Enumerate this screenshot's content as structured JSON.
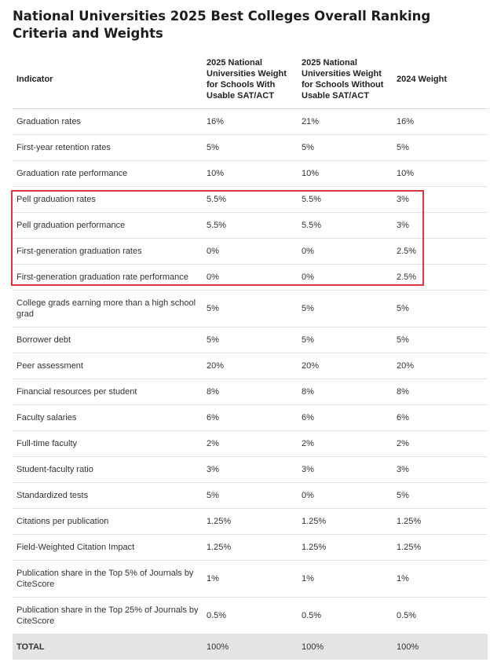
{
  "title": "National Universities 2025 Best Colleges Overall Ranking Criteria and Weights",
  "table": {
    "headers": [
      "Indicator",
      "2025 National Universities Weight for Schools With Usable SAT/ACT",
      "2025 National Universities Weight for Schools Without Usable SAT/ACT",
      "2024 Weight"
    ],
    "rows": [
      [
        "Graduation rates",
        "16%",
        "21%",
        "16%"
      ],
      [
        "First-year retention rates",
        "5%",
        "5%",
        "5%"
      ],
      [
        "Graduation rate performance",
        "10%",
        "10%",
        "10%"
      ],
      [
        "Pell graduation rates",
        "5.5%",
        "5.5%",
        "3%"
      ],
      [
        "Pell graduation performance",
        "5.5%",
        "5.5%",
        "3%"
      ],
      [
        "First-generation graduation rates",
        "0%",
        "0%",
        "2.5%"
      ],
      [
        "First-generation graduation rate performance",
        "0%",
        "0%",
        "2.5%"
      ],
      [
        "College grads earning more than a high school grad",
        "5%",
        "5%",
        "5%"
      ],
      [
        "Borrower debt",
        "5%",
        "5%",
        "5%"
      ],
      [
        "Peer assessment",
        "20%",
        "20%",
        "20%"
      ],
      [
        "Financial resources per student",
        "8%",
        "8%",
        "8%"
      ],
      [
        "Faculty salaries",
        "6%",
        "6%",
        "6%"
      ],
      [
        "Full-time faculty",
        "2%",
        "2%",
        "2%"
      ],
      [
        "Student-faculty ratio",
        "3%",
        "3%",
        "3%"
      ],
      [
        "Standardized tests",
        "5%",
        "0%",
        "5%"
      ],
      [
        "Citations per publication",
        "1.25%",
        "1.25%",
        "1.25%"
      ],
      [
        "Field-Weighted Citation Impact",
        "1.25%",
        "1.25%",
        "1.25%"
      ],
      [
        "Publication share in the Top 5% of Journals by CiteScore",
        "1%",
        "1%",
        "1%"
      ],
      [
        "Publication share in the Top 25% of Journals by CiteScore",
        "0.5%",
        "0.5%",
        "0.5%"
      ]
    ],
    "total": [
      "TOTAL",
      "100%",
      "100%",
      "100%"
    ]
  },
  "highlight_color": "#d9363e"
}
